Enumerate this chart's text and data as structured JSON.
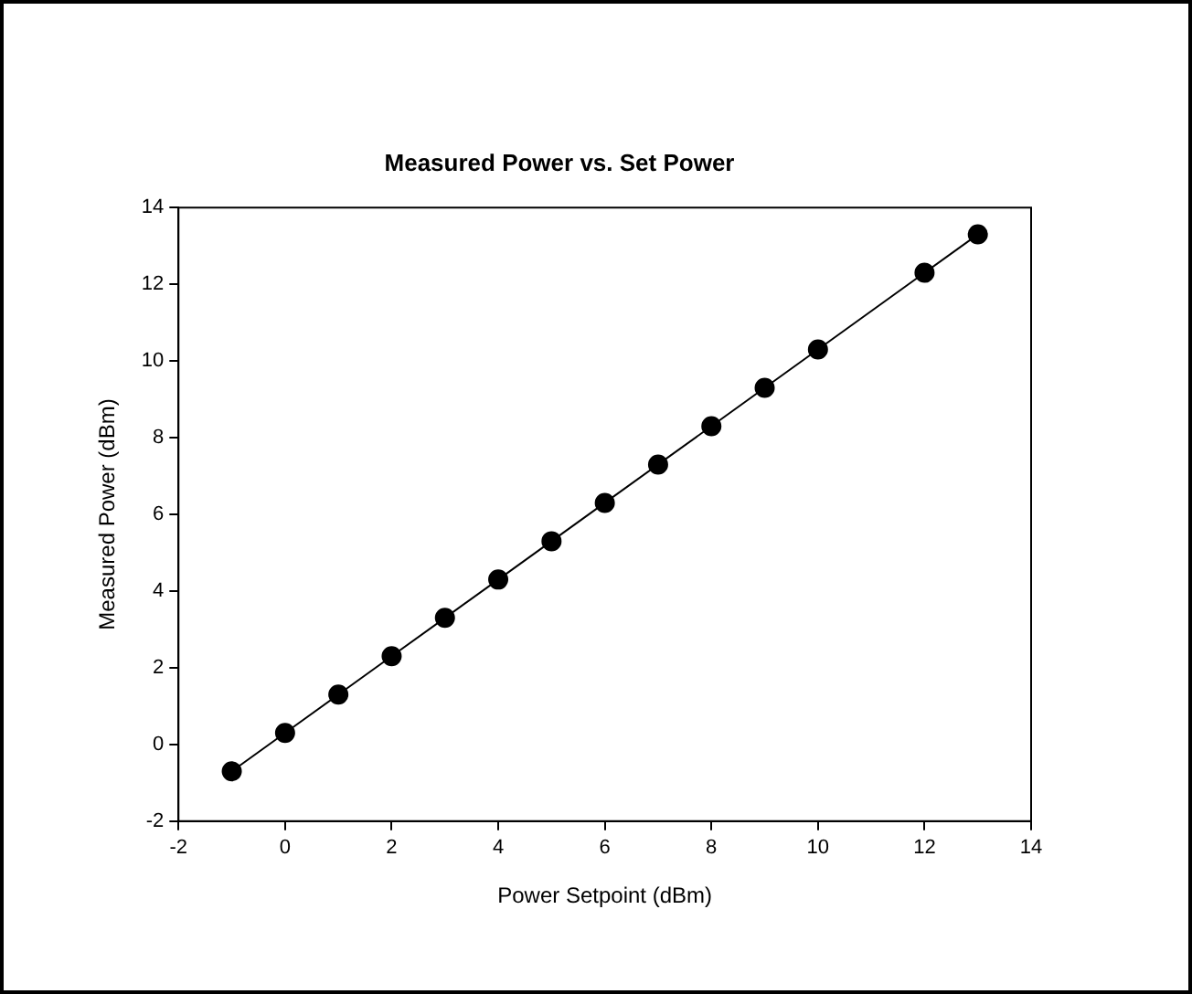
{
  "chart_data": {
    "type": "line",
    "title": "Measured Power vs. Set Power",
    "xlabel": "Power Setpoint (dBm)",
    "ylabel": "Measured Power (dBm)",
    "x": [
      -1,
      0,
      1,
      2,
      3,
      4,
      5,
      6,
      7,
      8,
      9,
      10,
      12,
      13
    ],
    "series": [
      {
        "color": "#000000",
        "values": [
          -0.7,
          0.3,
          1.3,
          2.3,
          3.3,
          4.3,
          5.3,
          6.3,
          7.3,
          8.3,
          9.3,
          10.3,
          12.3,
          13.3
        ]
      }
    ],
    "xlim": [
      -2,
      14
    ],
    "xticks": [
      -2,
      0,
      2,
      4,
      6,
      8,
      10,
      12,
      14
    ],
    "ylim": [
      -2,
      14
    ],
    "yticks": [
      -2,
      0,
      2,
      4,
      6,
      8,
      10,
      12,
      14
    ],
    "grid": false,
    "legend": false,
    "marker": "circle",
    "line_style": "solid"
  }
}
